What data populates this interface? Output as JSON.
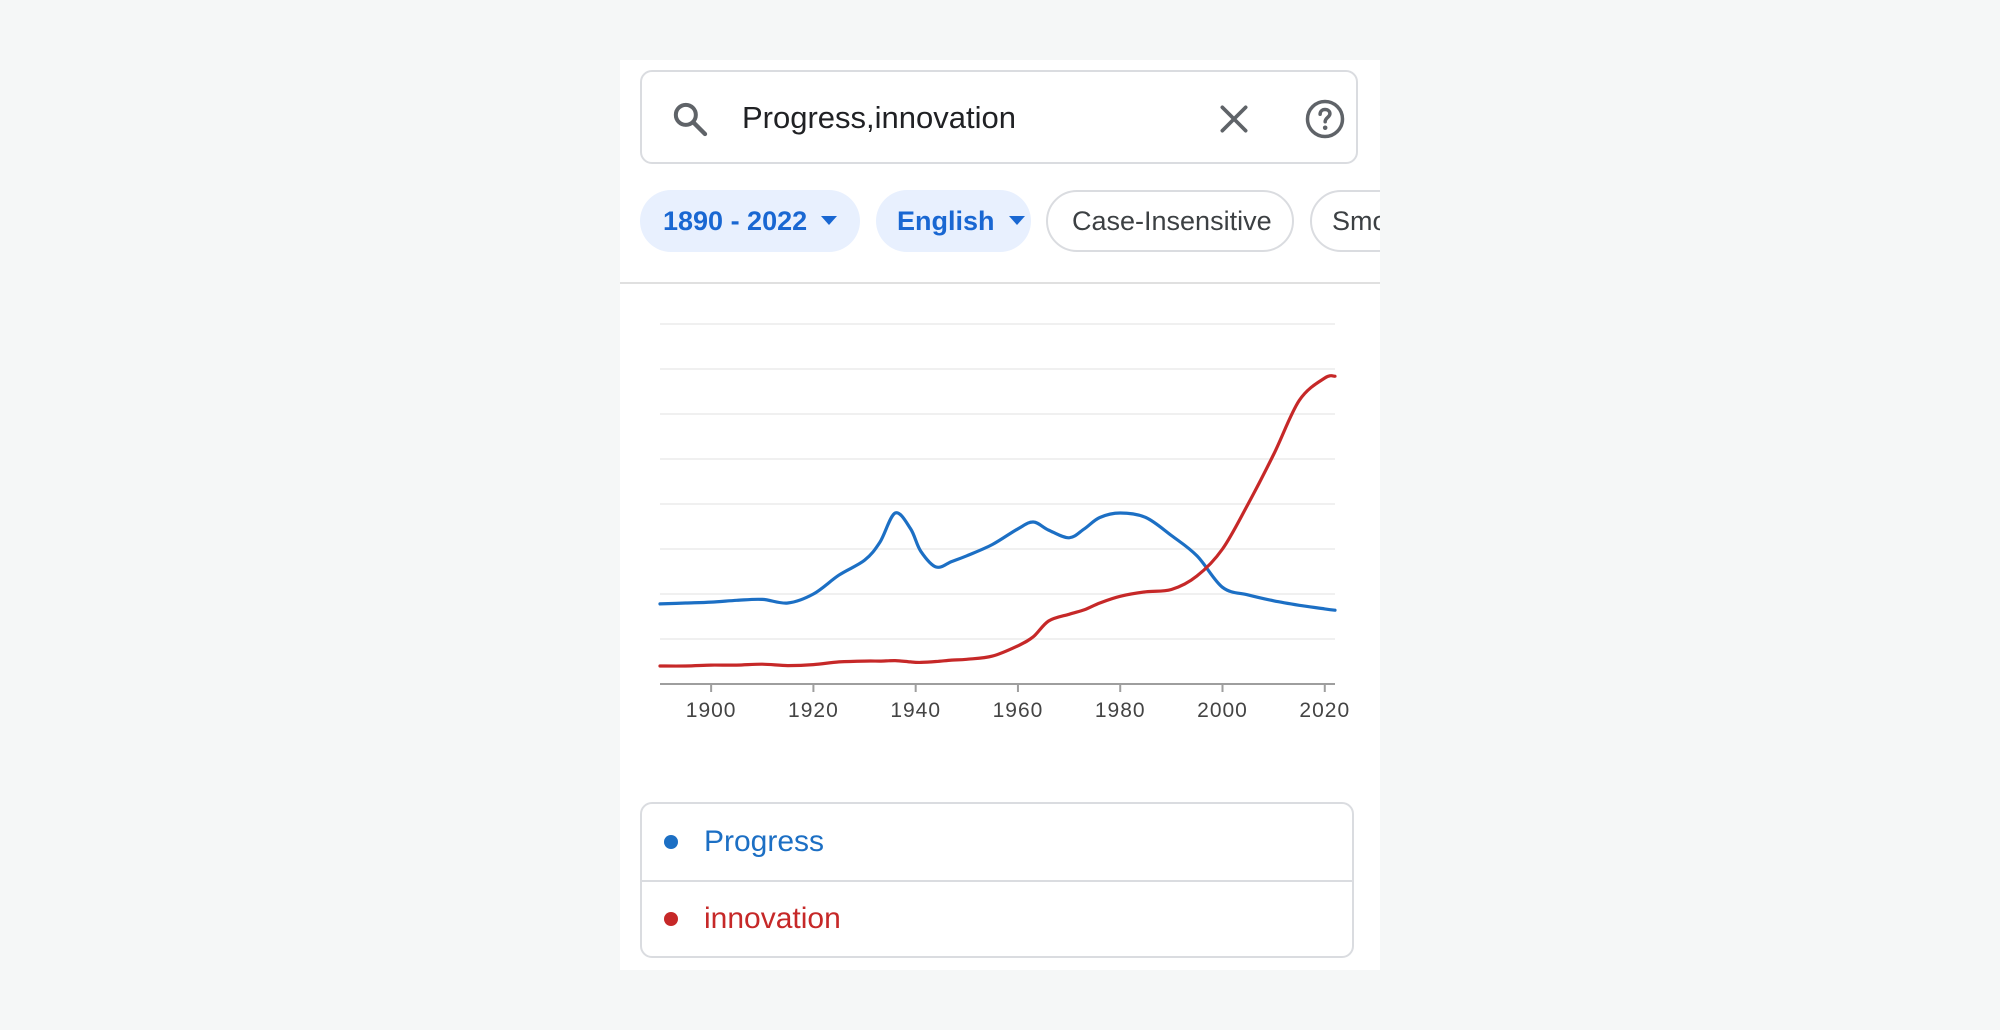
{
  "search": {
    "query": "Progress,innovation"
  },
  "icons": {
    "search": "search-icon",
    "clear": "close-icon",
    "help": "help-circle-icon",
    "caret": "caret-down-icon"
  },
  "filters": {
    "date_range": "1890 - 2022",
    "corpus": "English",
    "case": "Case-Insensitive",
    "smoothing_partial": "Smo"
  },
  "colors": {
    "progress": "#1c6fc4",
    "innovation": "#c62828",
    "chip_accent": "#1967d2"
  },
  "chart_data": {
    "type": "line",
    "title": "",
    "xlabel": "",
    "ylabel": "",
    "xlim": [
      1890,
      2022
    ],
    "ylim": [
      0,
      8
    ],
    "grid": true,
    "x_ticks": [
      1900,
      1920,
      1940,
      1960,
      1980,
      2000,
      2020
    ],
    "x": [
      1890,
      1895,
      1900,
      1905,
      1910,
      1915,
      1920,
      1925,
      1930,
      1933,
      1936,
      1939,
      1941,
      1944,
      1947,
      1950,
      1955,
      1960,
      1963,
      1966,
      1970,
      1973,
      1976,
      1980,
      1985,
      1990,
      1995,
      2000,
      2005,
      2010,
      2015,
      2020,
      2022
    ],
    "series": [
      {
        "name": "Progress",
        "values": [
          1.78,
          1.8,
          1.82,
          1.86,
          1.88,
          1.8,
          2.0,
          2.42,
          2.75,
          3.15,
          3.8,
          3.45,
          2.95,
          2.6,
          2.72,
          2.85,
          3.1,
          3.45,
          3.6,
          3.42,
          3.25,
          3.45,
          3.7,
          3.8,
          3.7,
          3.3,
          2.85,
          2.15,
          1.98,
          1.85,
          1.75,
          1.67,
          1.64
        ]
      },
      {
        "name": "innovation",
        "values": [
          0.4,
          0.4,
          0.42,
          0.42,
          0.44,
          0.41,
          0.43,
          0.49,
          0.51,
          0.51,
          0.52,
          0.49,
          0.48,
          0.5,
          0.53,
          0.55,
          0.62,
          0.85,
          1.05,
          1.4,
          1.55,
          1.65,
          1.8,
          1.95,
          2.05,
          2.1,
          2.4,
          3.0,
          4.0,
          5.1,
          6.3,
          6.8,
          6.84
        ]
      }
    ]
  },
  "legend": [
    {
      "label": "Progress"
    },
    {
      "label": "innovation"
    }
  ]
}
